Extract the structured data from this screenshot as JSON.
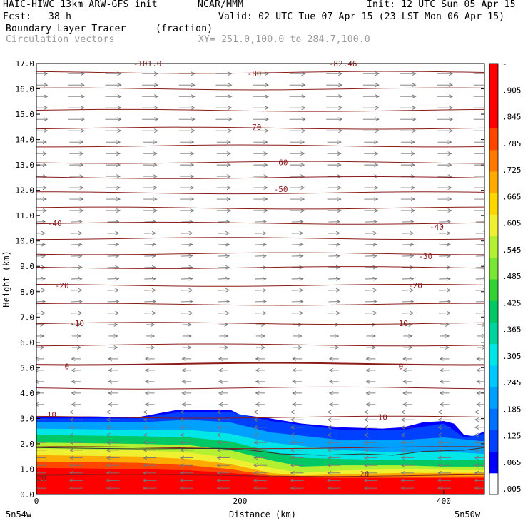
{
  "header": {
    "model": "HAIC-HIWC 13km ARW-GFS init",
    "org": "NCAR/MMM",
    "init": "Init: 12 UTC Sun 05 Apr 15",
    "fcst_label": "Fcst:",
    "fcst_value": "38 h",
    "valid": "Valid: 02 UTC Tue 07 Apr 15 (23 LST Mon 06 Apr 15)",
    "field": "Boundary Layer Tracer",
    "field_units": "(fraction)",
    "vectors": "Circulation vectors",
    "xy": "XY= 251.0,100.0 to 284.7,100.0"
  },
  "chart_data": {
    "type": "heatmap",
    "ylabel": "Height (km)",
    "xlabel": "Distance (km)",
    "xlim": [
      0,
      440
    ],
    "ylim": [
      0,
      17
    ],
    "xticks": [
      "0",
      "200",
      "400"
    ],
    "yticks": [
      "0.0",
      "1.0",
      "2.0",
      "3.0",
      "4.0",
      "5.0",
      "6.0",
      "7.0",
      "8.0",
      "9.0",
      "10.0",
      "11.0",
      "12.0",
      "13.0",
      "14.0",
      "15.0",
      "16.0",
      "17.0"
    ],
    "x_end_labels": [
      "5n54w",
      "5n50w"
    ],
    "colorbar_labels": [
      ".005",
      ".065",
      ".125",
      ".185",
      ".245",
      ".305",
      ".365",
      ".425",
      ".485",
      ".545",
      ".605",
      ".665",
      ".725",
      ".785",
      ".845",
      ".905",
      "-"
    ],
    "colorbar_colors": [
      "#ffffff",
      "#0000ff",
      "#0040ff",
      "#0070ff",
      "#00a0ff",
      "#00c8ff",
      "#00e6e6",
      "#00d2a0",
      "#00c864",
      "#32d232",
      "#78e632",
      "#b4f032",
      "#f0f032",
      "#ffd700",
      "#ffaa00",
      "#ff7800",
      "#ff4600",
      "#ff0000",
      "#ff0000",
      "#ff0000"
    ],
    "isotherm_labels": [
      {
        "x": 5,
        "y": 0.65,
        "label": "20"
      },
      {
        "x": 322,
        "y": 0.8,
        "label": "20"
      },
      {
        "x": 15,
        "y": 3.15,
        "label": "10"
      },
      {
        "x": 340,
        "y": 3.05,
        "label": "10"
      },
      {
        "x": 30,
        "y": 5.05,
        "label": "0"
      },
      {
        "x": 358,
        "y": 5.05,
        "label": "0"
      },
      {
        "x": 40,
        "y": 6.75,
        "label": "-10"
      },
      {
        "x": 358,
        "y": 6.75,
        "label": "-10"
      },
      {
        "x": 25,
        "y": 8.25,
        "label": "-20"
      },
      {
        "x": 372,
        "y": 8.25,
        "label": "-20"
      },
      {
        "x": 382,
        "y": 9.4,
        "label": "-30"
      },
      {
        "x": 18,
        "y": 10.7,
        "label": "-40"
      },
      {
        "x": 393,
        "y": 10.55,
        "label": "-40"
      },
      {
        "x": 240,
        "y": 12.05,
        "label": "-50"
      },
      {
        "x": 240,
        "y": 13.1,
        "label": "-60"
      },
      {
        "x": 214,
        "y": 14.5,
        "label": "-70"
      },
      {
        "x": 214,
        "y": 16.6,
        "label": "-80"
      },
      {
        "x": 109,
        "y": 17.0,
        "label": "-101.0"
      },
      {
        "x": 301,
        "y": 17.0,
        "label": "-82.46"
      }
    ],
    "isotherm_heights": [
      0.75,
      1.85,
      3.05,
      4.2,
      5.15,
      5.9,
      6.75,
      7.5,
      8.25,
      8.95,
      9.5,
      10.1,
      10.7,
      11.3,
      11.9,
      12.5,
      13.1,
      13.75,
      14.45,
      15.15,
      16.0,
      16.65
    ],
    "tracer_top_km": [
      [
        0,
        3.05
      ],
      [
        50,
        3.08
      ],
      [
        100,
        3.05
      ],
      [
        120,
        3.2
      ],
      [
        140,
        3.35
      ],
      [
        190,
        3.35
      ],
      [
        200,
        3.15
      ],
      [
        230,
        3.0
      ],
      [
        260,
        2.8
      ],
      [
        300,
        2.65
      ],
      [
        340,
        2.6
      ],
      [
        360,
        2.65
      ],
      [
        380,
        2.85
      ],
      [
        400,
        2.9
      ],
      [
        410,
        2.8
      ],
      [
        420,
        2.35
      ],
      [
        430,
        2.3
      ],
      [
        440,
        2.5
      ]
    ],
    "tracer_layers": [
      {
        "value": 0.065,
        "color": "#0040ff",
        "top": [
          [
            0,
            3.0
          ],
          [
            100,
            3.0
          ],
          [
            140,
            3.25
          ],
          [
            190,
            3.25
          ],
          [
            230,
            2.9
          ],
          [
            300,
            2.55
          ],
          [
            360,
            2.55
          ],
          [
            400,
            2.8
          ],
          [
            420,
            2.25
          ],
          [
            440,
            2.4
          ]
        ]
      },
      {
        "value": 0.125,
        "color": "#00a0ff",
        "top": [
          [
            0,
            2.85
          ],
          [
            100,
            2.85
          ],
          [
            150,
            2.95
          ],
          [
            190,
            2.85
          ],
          [
            230,
            2.45
          ],
          [
            300,
            2.15
          ],
          [
            360,
            2.15
          ],
          [
            400,
            2.25
          ],
          [
            440,
            2.1
          ]
        ]
      },
      {
        "value": 0.245,
        "color": "#00e6e6",
        "top": [
          [
            0,
            2.6
          ],
          [
            100,
            2.55
          ],
          [
            150,
            2.55
          ],
          [
            190,
            2.4
          ],
          [
            230,
            2.05
          ],
          [
            300,
            1.75
          ],
          [
            360,
            1.65
          ],
          [
            400,
            1.7
          ],
          [
            440,
            1.6
          ]
        ]
      },
      {
        "value": 0.365,
        "color": "#00c864",
        "top": [
          [
            0,
            2.35
          ],
          [
            100,
            2.3
          ],
          [
            150,
            2.25
          ],
          [
            190,
            2.1
          ],
          [
            230,
            1.7
          ],
          [
            260,
            1.45
          ],
          [
            300,
            1.4
          ],
          [
            360,
            1.35
          ],
          [
            400,
            1.35
          ],
          [
            440,
            1.35
          ]
        ]
      },
      {
        "value": 0.485,
        "color": "#b4f032",
        "top": [
          [
            0,
            2.05
          ],
          [
            100,
            2.0
          ],
          [
            150,
            1.95
          ],
          [
            190,
            1.75
          ],
          [
            230,
            1.35
          ],
          [
            260,
            1.1
          ],
          [
            300,
            1.15
          ],
          [
            360,
            1.15
          ],
          [
            400,
            1.1
          ],
          [
            440,
            1.1
          ]
        ]
      },
      {
        "value": 0.605,
        "color": "#f0f032",
        "top": [
          [
            0,
            1.8
          ],
          [
            100,
            1.75
          ],
          [
            150,
            1.65
          ],
          [
            190,
            1.45
          ],
          [
            230,
            1.05
          ],
          [
            260,
            0.85
          ],
          [
            300,
            0.95
          ],
          [
            360,
            1.0
          ],
          [
            440,
            0.95
          ]
        ]
      },
      {
        "value": 0.725,
        "color": "#ffaa00",
        "top": [
          [
            0,
            1.55
          ],
          [
            100,
            1.5
          ],
          [
            150,
            1.4
          ],
          [
            190,
            1.2
          ],
          [
            230,
            0.85
          ],
          [
            260,
            0.75
          ],
          [
            300,
            0.8
          ],
          [
            360,
            0.85
          ],
          [
            440,
            0.85
          ]
        ]
      },
      {
        "value": 0.845,
        "color": "#ff4600",
        "top": [
          [
            0,
            1.3
          ],
          [
            100,
            1.25
          ],
          [
            150,
            1.15
          ],
          [
            190,
            1.0
          ],
          [
            230,
            0.75
          ],
          [
            300,
            0.7
          ],
          [
            440,
            0.72
          ]
        ]
      },
      {
        "value": 0.905,
        "color": "#ff0000",
        "top": [
          [
            0,
            1.05
          ],
          [
            100,
            1.0
          ],
          [
            150,
            0.95
          ],
          [
            190,
            0.85
          ],
          [
            230,
            0.7
          ],
          [
            300,
            0.65
          ],
          [
            440,
            0.65
          ]
        ]
      }
    ],
    "pbl_line_km": [
      [
        0,
        1.85
      ],
      [
        100,
        1.8
      ],
      [
        180,
        1.82
      ],
      [
        210,
        1.75
      ],
      [
        240,
        1.6
      ],
      [
        280,
        1.55
      ],
      [
        320,
        1.6
      ],
      [
        350,
        1.55
      ],
      [
        380,
        1.7
      ],
      [
        420,
        1.75
      ],
      [
        440,
        1.85
      ]
    ],
    "wind_regimes": [
      {
        "from_km": 14.0,
        "to_km": 17.0,
        "u": 1.0,
        "w": 0.0,
        "len": 1.0
      },
      {
        "from_km": 11.0,
        "to_km": 14.0,
        "u": 1.0,
        "w": 0.0,
        "len": 0.8
      },
      {
        "from_km": 7.0,
        "to_km": 11.0,
        "u": 1.0,
        "w": 0.02,
        "len": 0.55
      },
      {
        "from_km": 5.5,
        "to_km": 7.0,
        "u": 1.0,
        "w": 0.0,
        "len": 0.3
      },
      {
        "from_km": 3.5,
        "to_km": 5.5,
        "u": -1.0,
        "w": 0.0,
        "len": 0.35
      },
      {
        "from_km": 0.0,
        "to_km": 3.5,
        "u": -1.0,
        "w": 0.0,
        "len": 0.7
      }
    ]
  }
}
